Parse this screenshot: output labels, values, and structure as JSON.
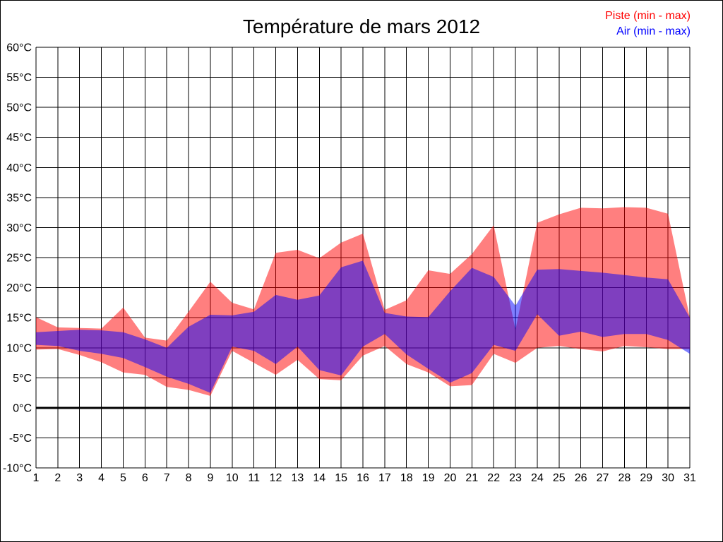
{
  "title": "Température de mars 2012",
  "legend": {
    "piste": {
      "label": "Piste (min - max)",
      "color": "#ff0000"
    },
    "air": {
      "label": "Air (min - max)",
      "color": "#0000ff"
    }
  },
  "chart_data": {
    "type": "area",
    "subtype": "daily min-max range bands, semi-transparent overlapping fills",
    "title": "Température de mars 2012",
    "xlabel": "",
    "ylabel": "",
    "x_days": [
      1,
      2,
      3,
      4,
      5,
      6,
      7,
      8,
      9,
      10,
      11,
      12,
      13,
      14,
      15,
      16,
      17,
      18,
      19,
      20,
      21,
      22,
      23,
      24,
      25,
      26,
      27,
      28,
      29,
      30,
      31
    ],
    "x_tick_labels": [
      "1",
      "2",
      "3",
      "4",
      "5",
      "6",
      "7",
      "8",
      "9",
      "10",
      "11",
      "12",
      "13",
      "14",
      "15",
      "16",
      "17",
      "18",
      "19",
      "20",
      "21",
      "22",
      "23",
      "24",
      "25",
      "26",
      "27",
      "28",
      "29",
      "30",
      "31"
    ],
    "y_tick_values": [
      60,
      55,
      50,
      45,
      40,
      35,
      30,
      25,
      20,
      15,
      10,
      5,
      0,
      -5,
      -10
    ],
    "y_tick_labels": [
      "60°C",
      "55°C",
      "50°C",
      "45°C",
      "40°C",
      "35°C",
      "30°C",
      "25°C",
      "20°C",
      "15°C",
      "10°C",
      "5°C",
      "0°C",
      "-5°C",
      "-10°C"
    ],
    "ylim": [
      -10,
      60
    ],
    "grid": true,
    "zero_line_emphasized": true,
    "legend_position": "top-right",
    "series": [
      {
        "name": "Piste (min - max)",
        "color": "#ff0000",
        "fill_opacity": 0.5,
        "min": [
          9.7,
          9.8,
          8.8,
          7.6,
          5.9,
          5.5,
          3.5,
          3.0,
          2.0,
          9.5,
          7.5,
          5.5,
          8.0,
          4.8,
          4.6,
          8.7,
          10.3,
          7.3,
          5.9,
          3.6,
          3.8,
          9.0,
          7.5,
          10.0,
          10.3,
          9.8,
          9.4,
          10.3,
          10.1,
          9.8,
          9.8
        ],
        "max": [
          15.1,
          13.4,
          13.3,
          13.2,
          16.7,
          11.7,
          11.2,
          16.0,
          21.0,
          17.5,
          16.4,
          25.8,
          26.3,
          24.9,
          27.5,
          29.0,
          16.3,
          17.9,
          22.9,
          22.3,
          25.6,
          30.4,
          13.0,
          30.8,
          32.2,
          33.3,
          33.2,
          33.4,
          33.3,
          32.3,
          15.0
        ]
      },
      {
        "name": "Air (min - max)",
        "color": "#0000ff",
        "fill_opacity": 0.5,
        "min": [
          10.5,
          10.3,
          9.5,
          9.0,
          8.3,
          6.8,
          5.2,
          4.0,
          2.5,
          10.2,
          9.5,
          7.3,
          10.2,
          6.3,
          5.4,
          10.2,
          12.3,
          8.9,
          6.5,
          4.2,
          5.8,
          10.5,
          9.5,
          15.6,
          12.0,
          12.7,
          11.8,
          12.3,
          12.3,
          11.3,
          9.0
        ],
        "max": [
          12.6,
          12.8,
          13.0,
          12.9,
          12.6,
          11.4,
          10.0,
          13.5,
          15.5,
          15.4,
          16.0,
          18.8,
          18.0,
          18.7,
          23.4,
          24.5,
          15.8,
          15.2,
          15.1,
          19.4,
          23.3,
          21.8,
          17.0,
          23.0,
          23.1,
          22.8,
          22.5,
          22.1,
          21.7,
          21.4,
          15.0
        ]
      }
    ]
  }
}
